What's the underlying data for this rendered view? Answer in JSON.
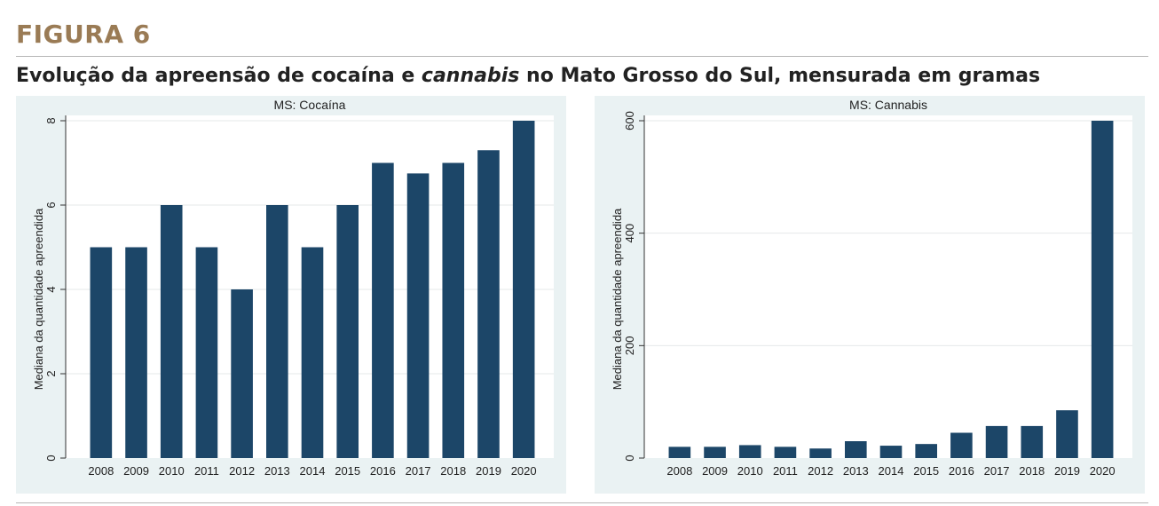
{
  "figure": {
    "label": "FIGURA 6",
    "title_pre": "Evolução da apreensão de cocaína e ",
    "title_em": "cannabis",
    "title_post": " no Mato Grosso do Sul, mensurada em gramas"
  },
  "colors": {
    "bar": "#1c4668",
    "panel_bg": "#eaf2f3",
    "label_accent": "#9a7b55"
  },
  "chart_data": [
    {
      "type": "bar",
      "title": "MS: Cocaína",
      "ylabel": "Mediana da quantidade apreendida",
      "xlabel": "",
      "categories": [
        "2008",
        "2009",
        "2010",
        "2011",
        "2012",
        "2013",
        "2014",
        "2015",
        "2016",
        "2017",
        "2018",
        "2019",
        "2020"
      ],
      "values": [
        5,
        5,
        6,
        5,
        4,
        6,
        5,
        6,
        7,
        6.75,
        7,
        7.3,
        8
      ],
      "ylim": [
        0,
        8
      ],
      "yticks": [
        0,
        2,
        4,
        6,
        8
      ],
      "grid": true
    },
    {
      "type": "bar",
      "title": "MS: Cannabis",
      "ylabel": "Mediana da quantidade apreendida",
      "xlabel": "",
      "categories": [
        "2008",
        "2009",
        "2010",
        "2011",
        "2012",
        "2013",
        "2014",
        "2015",
        "2016",
        "2017",
        "2018",
        "2019",
        "2020"
      ],
      "values": [
        20,
        20,
        23,
        20,
        17,
        30,
        22,
        25,
        45,
        57,
        57,
        85,
        600
      ],
      "ylim": [
        0,
        600
      ],
      "yticks": [
        0,
        200,
        400,
        600
      ],
      "grid": true
    }
  ]
}
